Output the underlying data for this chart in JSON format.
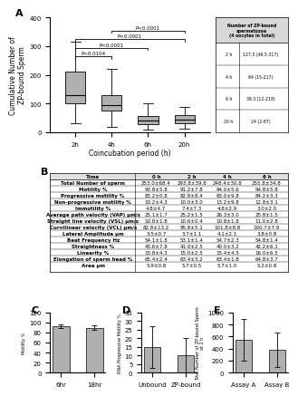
{
  "panel_A": {
    "title_label": "A",
    "box_data": {
      "2h": {
        "median": 130,
        "q1": 100,
        "q3": 210,
        "whisker_low": 30,
        "whisker_high": 315
      },
      "4h": {
        "median": 95,
        "q1": 75,
        "q3": 130,
        "whisker_low": 20,
        "whisker_high": 220
      },
      "6h": {
        "median": 42,
        "q1": 28,
        "q3": 57,
        "whisker_low": 10,
        "whisker_high": 100
      },
      "20h": {
        "median": 45,
        "q1": 30,
        "q3": 60,
        "whisker_low": 12,
        "whisker_high": 87
      }
    },
    "xticklabels": [
      "2h",
      "4h",
      "6h",
      "20h"
    ],
    "ylabel": "Cumulative Number of\nZP-bound Sperm",
    "xlabel": "Coincubation period (h)",
    "ylim": [
      0,
      400
    ],
    "yticks": [
      0,
      100,
      200,
      300,
      400
    ],
    "box_color": "#b0b0b0",
    "table_row_labels": [
      "2 h",
      "4 h",
      "6 h",
      "20 h"
    ],
    "table_row_values": [
      "127.5 (46.5-317)",
      "84 (15-217)",
      "39.3 (12-218)",
      "24 (2-87)"
    ],
    "table_header": "Number of ZP-bound\nspermatozoa\n(4 oocytes in total)"
  },
  "panel_B": {
    "title_label": "B",
    "headers": [
      "Time",
      "0 h",
      "2 h",
      "4 h",
      "6 h"
    ],
    "rows": [
      [
        "Total Number of sperm",
        "253.0±68.4",
        "293.8±39.8",
        "248.4±30.8",
        "255.8±34.8"
      ],
      [
        "Motility %",
        "93.8±5.8",
        "91.2±7.8",
        "94.0±5.6",
        "94.8±5.8"
      ],
      [
        "Progressive motility %",
        "83.2±0.8",
        "82.8±8.4",
        "83.0±9.8",
        "84.2±3.3"
      ],
      [
        "Non-progressive motility %",
        "10.2±4.3",
        "10.0±3.0",
        "13.2±9.8",
        "12.8±3.1"
      ],
      [
        "Immotility %",
        "4.8±4.7",
        "7.4±7.3",
        "4.8±2.9",
        "3.0±2.0"
      ],
      [
        "Average path velocity (VAP) μm/s",
        "25.1±1.7",
        "25.2±1.5",
        "26.3±3.0",
        "25.8±1.5"
      ],
      [
        "Straight line velocity (VSL) μm/s",
        "10.8±1.8",
        "10.6±0.4",
        "10.8±1.8",
        "11.0±2.8"
      ],
      [
        "Curvilinear velocity (VCL) μm/s",
        "82.8±13.2",
        "95.8±5.1",
        "101.8±8.8",
        "100.7±7.9"
      ],
      [
        "Lateral Amplitude μm",
        "3.5±0.7",
        "3.7±1.1",
        "4.1±2.1",
        "3.8±0.8"
      ],
      [
        "Beat Frequency Hz",
        "54.1±1.8",
        "53.1±1.4",
        "54.7±2.3",
        "54.8±1.4"
      ],
      [
        "Straightness %",
        "43.6±7.8",
        "41.0±2.5",
        "40.0±3.2",
        "42.2±6.1"
      ],
      [
        "Linearity %",
        "15.8±4.3",
        "15.0±2.5",
        "15.4±4.5",
        "16.0±6.5"
      ],
      [
        "Elongation of sperm head %",
        "65.4±2.4",
        "63.4±3.2",
        "63.4±1.8",
        "64.8±3.7"
      ],
      [
        "Area μm",
        "5.9±0.8",
        "5.7±0.5",
        "5.7±1.0",
        "5.2±0.8"
      ]
    ]
  },
  "panel_C": {
    "title_label": "C",
    "ylabel": "Motility %",
    "categories": [
      "6hr",
      "18hr"
    ],
    "values": [
      93,
      90
    ],
    "errors": [
      3,
      4
    ],
    "ylim": [
      0,
      120
    ],
    "yticks": [
      0,
      20,
      40,
      60,
      80,
      100,
      120
    ],
    "bar_color": "#b0b0b0"
  },
  "panel_D": {
    "title_label": "D",
    "ylabel": "RNA Progressive Motility %",
    "categories": [
      "Unbound",
      "ZP-bound"
    ],
    "values": [
      15,
      10
    ],
    "errors": [
      12,
      10
    ],
    "ylim": [
      0,
      35
    ],
    "yticks": [
      0,
      5,
      10,
      15,
      20,
      25,
      30,
      35
    ],
    "bar_color": "#b0b0b0"
  },
  "panel_E": {
    "title_label": "E",
    "ylabel": "Total Number of ZP-bound Sperm\nat 2 h",
    "categories": [
      "Assay A",
      "Assay B"
    ],
    "values": [
      550,
      380
    ],
    "errors": [
      350,
      280
    ],
    "ylim": [
      0,
      1000
    ],
    "yticks": [
      0,
      200,
      400,
      600,
      800,
      1000
    ],
    "bar_color": "#b0b0b0"
  },
  "figure_bg": "#ffffff",
  "panel_label_fontsize": 7,
  "tick_fontsize": 5,
  "axis_label_fontsize": 5.5,
  "table_fontsize": 4.0
}
